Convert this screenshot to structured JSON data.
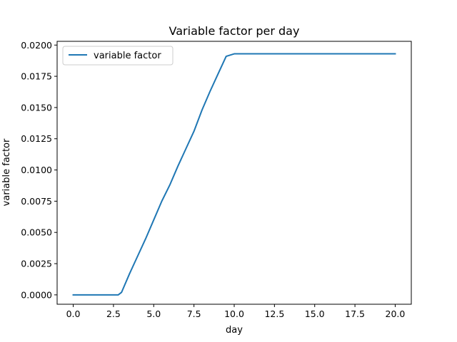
{
  "chart_data": {
    "type": "line",
    "title": "Variable factor per day",
    "xlabel": "day",
    "ylabel": "variable factor",
    "xlim": [
      -1.0,
      21.0
    ],
    "ylim": [
      -0.00075,
      0.0203
    ],
    "xticks": [
      0.0,
      2.5,
      5.0,
      7.5,
      10.0,
      12.5,
      15.0,
      17.5,
      20.0
    ],
    "xtick_labels": [
      "0.0",
      "2.5",
      "5.0",
      "7.5",
      "10.0",
      "12.5",
      "15.0",
      "17.5",
      "20.0"
    ],
    "yticks": [
      0.0,
      0.0025,
      0.005,
      0.0075,
      0.01,
      0.0125,
      0.015,
      0.0175,
      0.02
    ],
    "ytick_labels": [
      "0.0000",
      "0.0025",
      "0.0050",
      "0.0075",
      "0.0100",
      "0.0125",
      "0.0150",
      "0.0175",
      "0.0200"
    ],
    "grid": false,
    "legend": "top-left",
    "series": [
      {
        "name": "variable factor",
        "color": "#1f77b4",
        "x": [
          0,
          1,
          2,
          2.8,
          3.0,
          3.5,
          4.0,
          4.5,
          5.0,
          5.5,
          6.0,
          6.5,
          7.0,
          7.5,
          8.0,
          8.5,
          9.0,
          9.5,
          10.0,
          11,
          12,
          13,
          14,
          15,
          16,
          17,
          18,
          19,
          20
        ],
        "y": [
          0,
          0,
          0,
          0,
          0.0002,
          0.0017,
          0.0031,
          0.0045,
          0.006,
          0.0075,
          0.0088,
          0.0103,
          0.0117,
          0.0131,
          0.0148,
          0.0163,
          0.0177,
          0.0191,
          0.0193,
          0.0193,
          0.0193,
          0.0193,
          0.0193,
          0.0193,
          0.0193,
          0.0193,
          0.0193,
          0.0193,
          0.0193
        ]
      }
    ]
  }
}
